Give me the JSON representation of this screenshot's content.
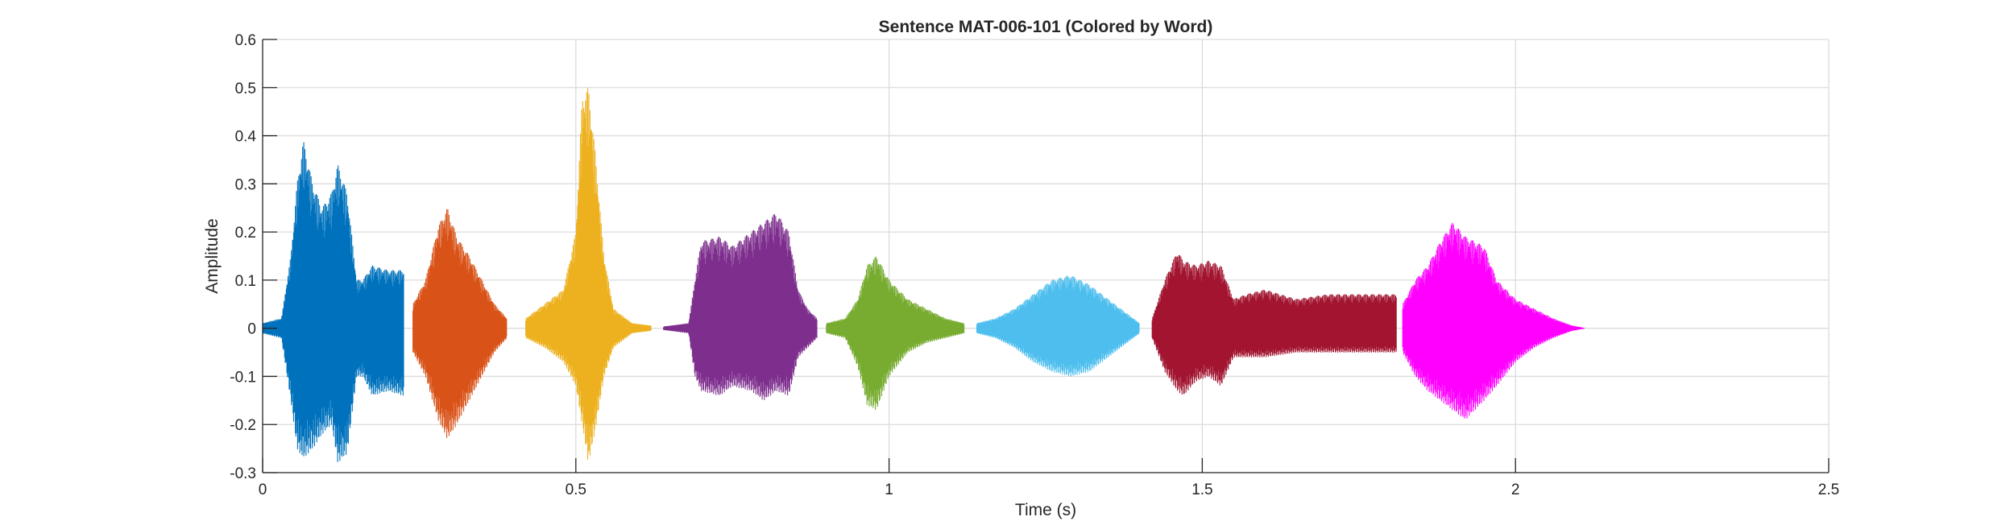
{
  "chart_data": {
    "type": "line",
    "title": "Sentence MAT-006-101 (Colored by Word)",
    "xlabel": "Time (s)",
    "ylabel": "Amplitude",
    "xlim": [
      0,
      2.5
    ],
    "ylim": [
      -0.3,
      0.6
    ],
    "xticks": [
      0,
      0.5,
      1,
      1.5,
      2,
      2.5
    ],
    "xtick_labels": [
      "0",
      "0.5",
      "1",
      "1.5",
      "2",
      "2.5"
    ],
    "yticks": [
      -0.3,
      -0.2,
      -0.1,
      0,
      0.1,
      0.2,
      0.3,
      0.4,
      0.5,
      0.6
    ],
    "ytick_labels": [
      "-0.3",
      "-0.2",
      "-0.1",
      "0",
      "0.1",
      "0.2",
      "0.3",
      "0.4",
      "0.5",
      "0.6"
    ],
    "grid": true,
    "series": [
      {
        "color": "#0072BD",
        "t_start": 0.0,
        "t_end": 0.225,
        "envelope": [
          [
            0.0,
            0.01,
            -0.01
          ],
          [
            0.03,
            0.02,
            -0.02
          ],
          [
            0.045,
            0.15,
            -0.15
          ],
          [
            0.055,
            0.3,
            -0.25
          ],
          [
            0.065,
            0.39,
            -0.27
          ],
          [
            0.08,
            0.3,
            -0.25
          ],
          [
            0.095,
            0.25,
            -0.22
          ],
          [
            0.11,
            0.28,
            -0.2
          ],
          [
            0.12,
            0.34,
            -0.28
          ],
          [
            0.135,
            0.28,
            -0.26
          ],
          [
            0.15,
            0.1,
            -0.1
          ],
          [
            0.16,
            0.1,
            -0.1
          ],
          [
            0.175,
            0.13,
            -0.14
          ],
          [
            0.2,
            0.12,
            -0.13
          ],
          [
            0.225,
            0.12,
            -0.14
          ]
        ]
      },
      {
        "color": "#D95319",
        "t_start": 0.24,
        "t_end": 0.39,
        "envelope": [
          [
            0.24,
            0.05,
            -0.05
          ],
          [
            0.26,
            0.1,
            -0.1
          ],
          [
            0.28,
            0.21,
            -0.19
          ],
          [
            0.295,
            0.25,
            -0.23
          ],
          [
            0.31,
            0.19,
            -0.2
          ],
          [
            0.33,
            0.15,
            -0.15
          ],
          [
            0.35,
            0.1,
            -0.1
          ],
          [
            0.37,
            0.05,
            -0.05
          ],
          [
            0.39,
            0.02,
            -0.02
          ]
        ]
      },
      {
        "color": "#EDB120",
        "t_start": 0.42,
        "t_end": 0.62,
        "envelope": [
          [
            0.42,
            0.02,
            -0.02
          ],
          [
            0.45,
            0.05,
            -0.04
          ],
          [
            0.48,
            0.08,
            -0.07
          ],
          [
            0.5,
            0.2,
            -0.12
          ],
          [
            0.51,
            0.48,
            -0.2
          ],
          [
            0.52,
            0.5,
            -0.28
          ],
          [
            0.53,
            0.38,
            -0.22
          ],
          [
            0.545,
            0.15,
            -0.1
          ],
          [
            0.56,
            0.04,
            -0.04
          ],
          [
            0.59,
            0.01,
            -0.01
          ],
          [
            0.62,
            0.005,
            -0.005
          ]
        ]
      },
      {
        "color": "#7E2F8E",
        "t_start": 0.64,
        "t_end": 0.885,
        "envelope": [
          [
            0.64,
            0.003,
            -0.003
          ],
          [
            0.68,
            0.01,
            -0.01
          ],
          [
            0.69,
            0.1,
            -0.1
          ],
          [
            0.7,
            0.18,
            -0.13
          ],
          [
            0.73,
            0.19,
            -0.14
          ],
          [
            0.75,
            0.17,
            -0.12
          ],
          [
            0.78,
            0.2,
            -0.13
          ],
          [
            0.8,
            0.22,
            -0.15
          ],
          [
            0.82,
            0.24,
            -0.13
          ],
          [
            0.84,
            0.2,
            -0.14
          ],
          [
            0.855,
            0.08,
            -0.06
          ],
          [
            0.87,
            0.04,
            -0.04
          ],
          [
            0.885,
            0.02,
            -0.02
          ]
        ]
      },
      {
        "color": "#77AC30",
        "t_start": 0.9,
        "t_end": 1.12,
        "envelope": [
          [
            0.9,
            0.01,
            -0.01
          ],
          [
            0.93,
            0.02,
            -0.02
          ],
          [
            0.95,
            0.06,
            -0.08
          ],
          [
            0.965,
            0.13,
            -0.16
          ],
          [
            0.98,
            0.15,
            -0.17
          ],
          [
            1.0,
            0.1,
            -0.1
          ],
          [
            1.03,
            0.06,
            -0.05
          ],
          [
            1.06,
            0.04,
            -0.03
          ],
          [
            1.09,
            0.02,
            -0.02
          ],
          [
            1.12,
            0.01,
            -0.01
          ]
        ]
      },
      {
        "color": "#4DBEEE",
        "t_start": 1.14,
        "t_end": 1.4,
        "envelope": [
          [
            1.14,
            0.01,
            -0.01
          ],
          [
            1.17,
            0.02,
            -0.02
          ],
          [
            1.2,
            0.04,
            -0.04
          ],
          [
            1.23,
            0.07,
            -0.07
          ],
          [
            1.26,
            0.1,
            -0.09
          ],
          [
            1.29,
            0.11,
            -0.1
          ],
          [
            1.32,
            0.09,
            -0.09
          ],
          [
            1.35,
            0.06,
            -0.06
          ],
          [
            1.38,
            0.03,
            -0.03
          ],
          [
            1.4,
            0.01,
            -0.01
          ]
        ]
      },
      {
        "color": "#A2142F",
        "t_start": 1.42,
        "t_end": 1.81,
        "envelope": [
          [
            1.42,
            0.02,
            -0.02
          ],
          [
            1.44,
            0.1,
            -0.09
          ],
          [
            1.46,
            0.16,
            -0.13
          ],
          [
            1.47,
            0.14,
            -0.14
          ],
          [
            1.49,
            0.13,
            -0.11
          ],
          [
            1.51,
            0.14,
            -0.1
          ],
          [
            1.53,
            0.13,
            -0.12
          ],
          [
            1.55,
            0.06,
            -0.06
          ],
          [
            1.57,
            0.07,
            -0.06
          ],
          [
            1.6,
            0.08,
            -0.06
          ],
          [
            1.65,
            0.06,
            -0.05
          ],
          [
            1.7,
            0.07,
            -0.05
          ],
          [
            1.75,
            0.07,
            -0.05
          ],
          [
            1.8,
            0.07,
            -0.05
          ],
          [
            1.81,
            0.07,
            -0.05
          ]
        ]
      },
      {
        "color": "#FF00FF",
        "t_start": 1.82,
        "t_end": 2.11,
        "envelope": [
          [
            1.82,
            0.05,
            -0.05
          ],
          [
            1.84,
            0.1,
            -0.1
          ],
          [
            1.86,
            0.13,
            -0.13
          ],
          [
            1.88,
            0.18,
            -0.15
          ],
          [
            1.9,
            0.22,
            -0.17
          ],
          [
            1.92,
            0.19,
            -0.19
          ],
          [
            1.95,
            0.17,
            -0.15
          ],
          [
            1.97,
            0.1,
            -0.12
          ],
          [
            2.0,
            0.06,
            -0.07
          ],
          [
            2.03,
            0.04,
            -0.04
          ],
          [
            2.06,
            0.02,
            -0.02
          ],
          [
            2.09,
            0.005,
            -0.005
          ],
          [
            2.11,
            0.0,
            0.0
          ]
        ]
      }
    ]
  }
}
